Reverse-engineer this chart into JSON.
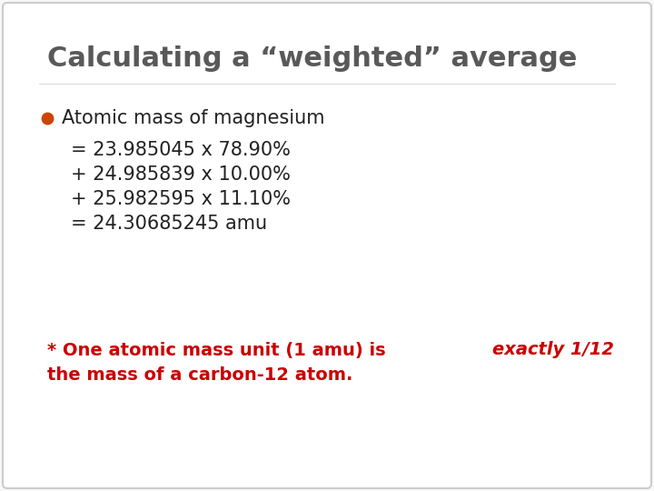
{
  "title": "Calculating a “weighted” average",
  "title_color": "#595959",
  "title_fontsize": 22,
  "background_color": "#f8f8f8",
  "bullet_color": "#cc4400",
  "bullet_text": "Atomic mass of magnesium",
  "body_lines": [
    "= 23.985045 x 78.90%",
    "+ 24.985839 x 10.00%",
    "+ 25.982595 x 11.10%",
    "= 24.30685245 amu"
  ],
  "body_fontsize": 15,
  "body_color": "#222222",
  "footnote_line1_normal": "* One atomic mass unit (1 amu) is ",
  "footnote_line1_italic": "exactly 1/12",
  "footnote_line2": "the mass of a carbon-12 atom.",
  "footnote_color": "#cc0000",
  "footnote_fontsize": 14
}
